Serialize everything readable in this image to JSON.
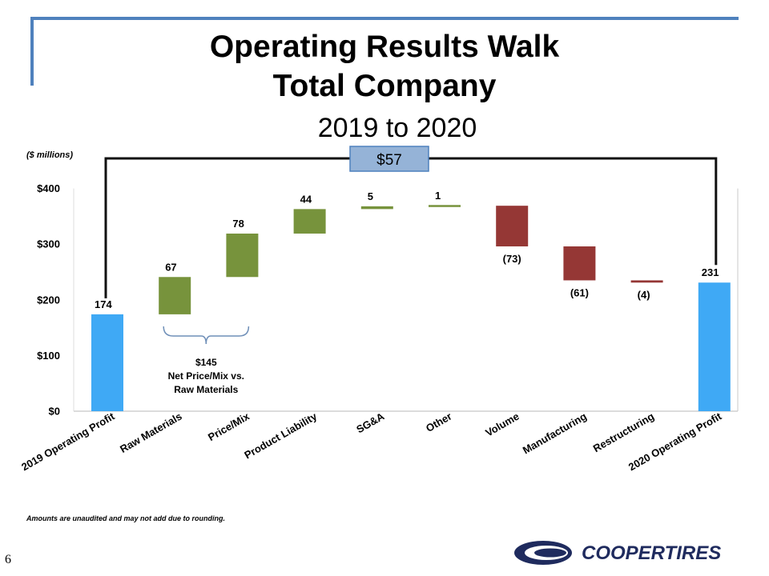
{
  "slide": {
    "title_line1": "Operating Results Walk",
    "title_line2": "Total Company",
    "subtitle": "2019 to 2020",
    "units_note": "($ millions)",
    "footnote": "Amounts are unaudited and may not add due to rounding.",
    "page_number": "6",
    "logo_text": "COOPERTIRES",
    "colors": {
      "accent": "#4f81bd",
      "total": "#3fa9f5",
      "increase": "#77933c",
      "decrease": "#953735",
      "callout": "#95b3d7"
    }
  },
  "chart_data": {
    "type": "waterfall",
    "y_ticks": [
      0,
      100,
      200,
      300,
      400
    ],
    "y_tick_labels": [
      "$0",
      "$100",
      "$200",
      "$300",
      "$400"
    ],
    "ylim": [
      0,
      400
    ],
    "categories": [
      "2019 Operating Profit",
      "Raw Materials",
      "Price/Mix",
      "Product Liability",
      "SG&A",
      "Other",
      "Volume",
      "Manufacturing",
      "Restructuring",
      "2020 Operating Profit"
    ],
    "values": [
      174,
      67,
      78,
      44,
      5,
      1,
      -73,
      -61,
      -4,
      231
    ],
    "kinds": [
      "total",
      "increase",
      "increase",
      "increase",
      "increase",
      "increase",
      "decrease",
      "decrease",
      "decrease",
      "total"
    ],
    "data_labels": [
      "174",
      "67",
      "78",
      "44",
      "5",
      "1",
      "(73)",
      "(61)",
      "(4)",
      "231"
    ],
    "change_callout": "$57",
    "brace_annotation": [
      "$145",
      "Net Price/Mix vs.",
      "Raw Materials"
    ]
  }
}
